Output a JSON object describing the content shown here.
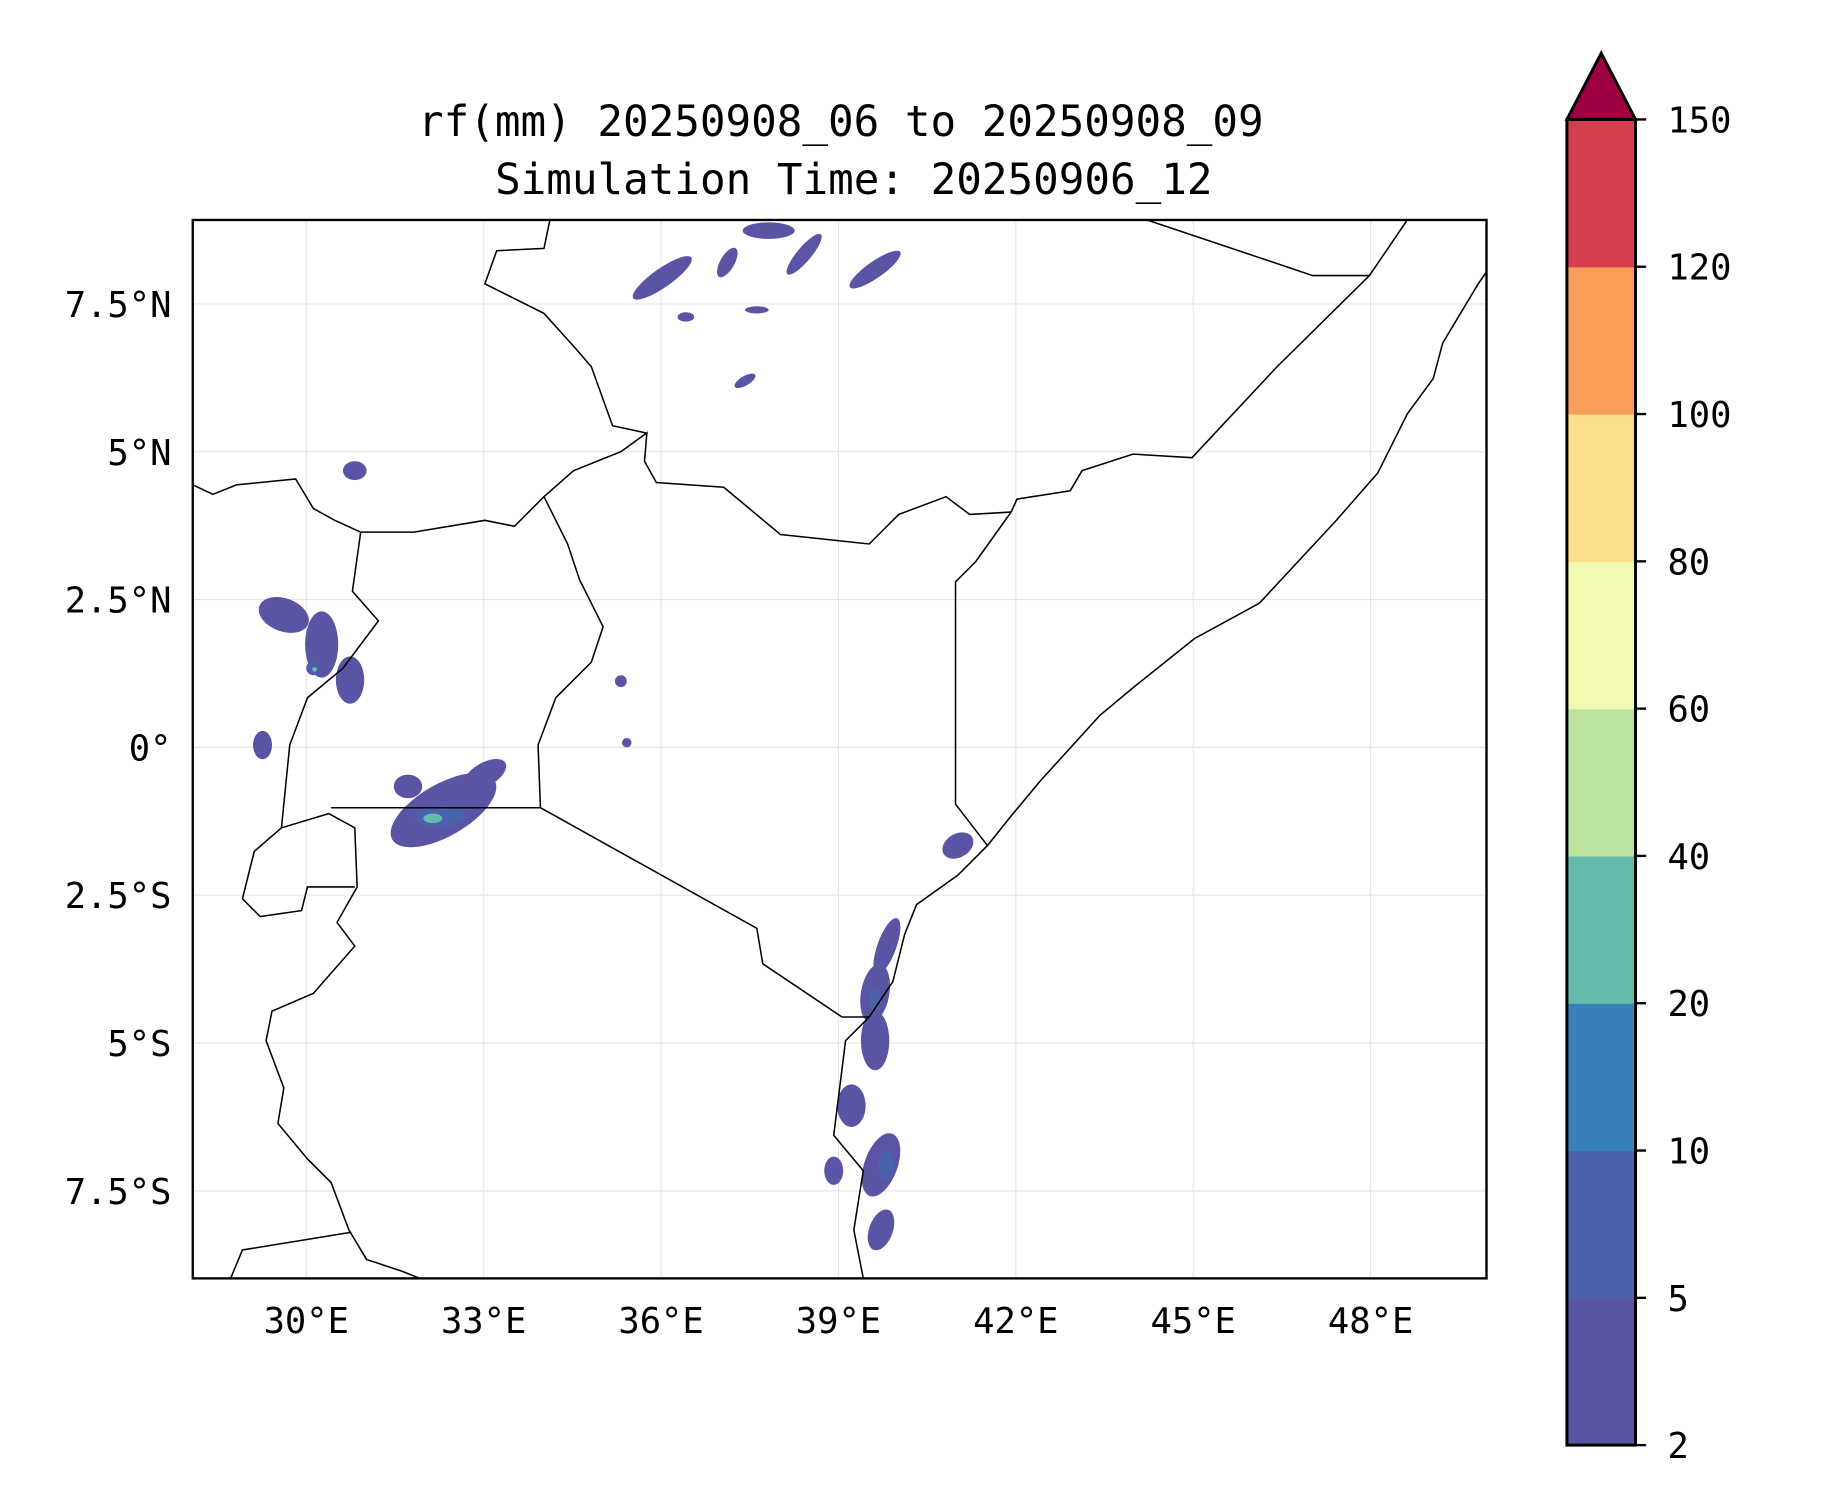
{
  "chart_data": {
    "type": "map",
    "title_line1": "rf(mm) 20250908_06 to 20250908_09",
    "title_line2": "Simulation Time: 20250906_12",
    "x_ticks": [
      {
        "value": 30,
        "label": "30°E"
      },
      {
        "value": 33,
        "label": "33°E"
      },
      {
        "value": 36,
        "label": "36°E"
      },
      {
        "value": 39,
        "label": "39°E"
      },
      {
        "value": 42,
        "label": "42°E"
      },
      {
        "value": 45,
        "label": "45°E"
      },
      {
        "value": 48,
        "label": "48°E"
      }
    ],
    "y_ticks": [
      {
        "value": 7.5,
        "label": "7.5°N"
      },
      {
        "value": 5,
        "label": "5°N"
      },
      {
        "value": 2.5,
        "label": "2.5°N"
      },
      {
        "value": 0,
        "label": "0°"
      },
      {
        "value": -2.5,
        "label": "2.5°S"
      },
      {
        "value": -5,
        "label": "5°S"
      },
      {
        "value": -7.5,
        "label": "7.5°S"
      }
    ],
    "xlim": [
      28.08,
      49.96
    ],
    "ylim": [
      -8.98,
      8.92
    ],
    "grid": true,
    "colorbar": {
      "levels": [
        "2",
        "5",
        "10",
        "20",
        "40",
        "60",
        "80",
        "100",
        "120",
        "150"
      ],
      "colors": [
        "#5954a4",
        "#4a62ab",
        "#3780b9",
        "#62bca9",
        "#bde3a0",
        "#f2f9b0",
        "#fcdd8c",
        "#f99d59",
        "#d53e4f"
      ],
      "extend_color": "#9e0142",
      "extend": "max"
    }
  }
}
